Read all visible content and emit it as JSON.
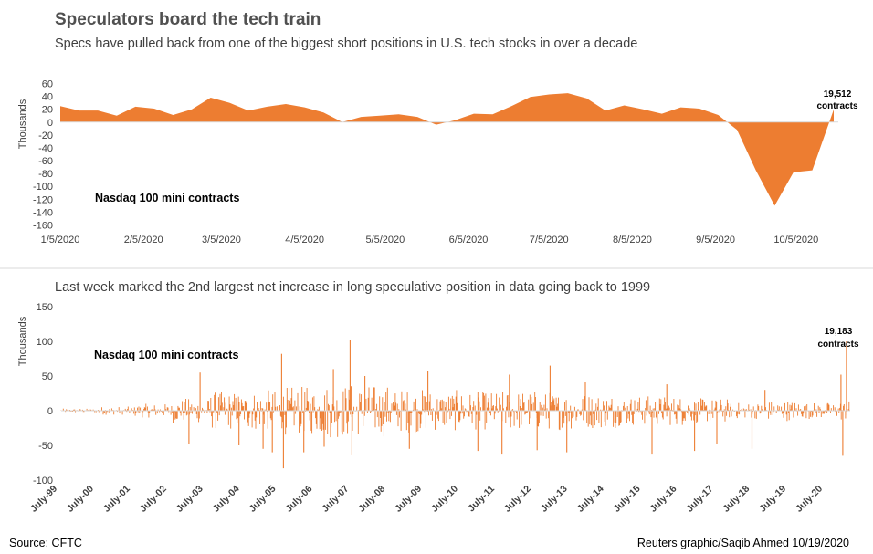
{
  "title": "Speculators board the tech train",
  "subtitle": "Specs have pulled back from one of the biggest short positions in U.S. tech stocks in over a decade",
  "source": "Source: CFTC",
  "credit": "Reuters graphic/Saqib Ahmed 10/19/2020",
  "colors": {
    "series": "#ED7D31",
    "axis": "#d9d9d9",
    "divider": "#d9d9d9"
  },
  "chart_data": [
    {
      "type": "area",
      "ylabel": "Thousands",
      "series_label": "Nasdaq 100 mini contracts",
      "ylim": [
        -160,
        60
      ],
      "yticks": [
        60,
        40,
        20,
        0,
        -20,
        -40,
        -60,
        -80,
        -100,
        -120,
        -140,
        -160
      ],
      "xticks": [
        "1/5/2020",
        "2/5/2020",
        "3/5/2020",
        "4/5/2020",
        "5/5/2020",
        "6/5/2020",
        "7/5/2020",
        "8/5/2020",
        "9/5/2020",
        "10/5/2020"
      ],
      "xlim": [
        "2020-01-05",
        "2020-10-19"
      ],
      "annotation": {
        "value": "19,512",
        "unit": "contracts"
      },
      "x": [
        "2020-01-05",
        "2020-01-12",
        "2020-01-19",
        "2020-01-26",
        "2020-02-02",
        "2020-02-09",
        "2020-02-16",
        "2020-02-23",
        "2020-03-01",
        "2020-03-08",
        "2020-03-15",
        "2020-03-22",
        "2020-03-29",
        "2020-04-05",
        "2020-04-12",
        "2020-04-19",
        "2020-04-26",
        "2020-05-03",
        "2020-05-10",
        "2020-05-17",
        "2020-05-24",
        "2020-05-31",
        "2020-06-07",
        "2020-06-14",
        "2020-06-21",
        "2020-06-28",
        "2020-07-05",
        "2020-07-12",
        "2020-07-19",
        "2020-07-26",
        "2020-08-02",
        "2020-08-09",
        "2020-08-16",
        "2020-08-23",
        "2020-08-30",
        "2020-09-06",
        "2020-09-13",
        "2020-09-20",
        "2020-09-27",
        "2020-10-04",
        "2020-10-11",
        "2020-10-19"
      ],
      "values": [
        25,
        18,
        18,
        10,
        24,
        21,
        11,
        20,
        38,
        30,
        18,
        24,
        28,
        23,
        15,
        0,
        8,
        10,
        12,
        8,
        -4,
        3,
        13,
        12,
        25,
        39,
        43,
        45,
        37,
        18,
        26,
        20,
        13,
        23,
        21,
        11,
        -12,
        -75,
        -130,
        -78,
        -75,
        19.5
      ]
    },
    {
      "type": "bar",
      "ylabel": "Thousands",
      "series_label": "Nasdaq 100 mini contracts",
      "ylim": [
        -100,
        150
      ],
      "yticks": [
        150,
        100,
        50,
        0,
        -50,
        -100
      ],
      "xticks": [
        "July-99",
        "July-00",
        "July-01",
        "July-02",
        "July-03",
        "July-04",
        "July-05",
        "July-06",
        "July-07",
        "July-08",
        "July-09",
        "July-10",
        "July-11",
        "July-12",
        "July-13",
        "July-14",
        "July-15",
        "July-16",
        "July-17",
        "July-18",
        "July-19",
        "July-20"
      ],
      "annotation": {
        "value": "19,183",
        "unit": "contracts"
      },
      "start_year": 1999.5,
      "end_year": 2020.8,
      "amplitude_by_year": [
        3,
        6,
        10,
        18,
        28,
        30,
        35,
        40,
        38,
        32,
        30,
        28,
        30,
        28,
        26,
        22,
        22,
        18,
        12,
        15,
        12,
        15
      ],
      "spikes": [
        {
          "year": 2002.95,
          "value": -48
        },
        {
          "year": 2003.25,
          "value": 55
        },
        {
          "year": 2004.3,
          "value": -50
        },
        {
          "year": 2004.95,
          "value": -55
        },
        {
          "year": 2005.2,
          "value": -60
        },
        {
          "year": 2005.45,
          "value": 82
        },
        {
          "year": 2005.5,
          "value": -83
        },
        {
          "year": 2006.05,
          "value": -60
        },
        {
          "year": 2006.6,
          "value": -52
        },
        {
          "year": 2006.85,
          "value": 60
        },
        {
          "year": 2007.3,
          "value": 102
        },
        {
          "year": 2007.35,
          "value": -63
        },
        {
          "year": 2007.7,
          "value": 50
        },
        {
          "year": 2008.9,
          "value": -55
        },
        {
          "year": 2009.4,
          "value": 57
        },
        {
          "year": 2010.75,
          "value": -58
        },
        {
          "year": 2011.4,
          "value": -62
        },
        {
          "year": 2011.6,
          "value": 52
        },
        {
          "year": 2012.35,
          "value": -57
        },
        {
          "year": 2012.7,
          "value": 65
        },
        {
          "year": 2013.15,
          "value": -60
        },
        {
          "year": 2013.65,
          "value": 42
        },
        {
          "year": 2015.45,
          "value": -62
        },
        {
          "year": 2015.85,
          "value": 38
        },
        {
          "year": 2016.6,
          "value": -58
        },
        {
          "year": 2017.2,
          "value": -48
        },
        {
          "year": 2018.15,
          "value": -55
        },
        {
          "year": 2018.5,
          "value": 30
        },
        {
          "year": 2020.55,
          "value": 52
        },
        {
          "year": 2020.6,
          "value": -65
        },
        {
          "year": 2020.7,
          "value": 100
        }
      ]
    }
  ]
}
